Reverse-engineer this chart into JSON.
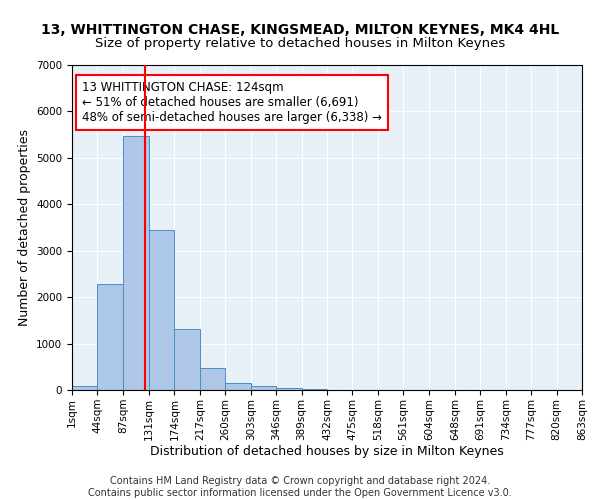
{
  "title": "13, WHITTINGTON CHASE, KINGSMEAD, MILTON KEYNES, MK4 4HL",
  "subtitle": "Size of property relative to detached houses in Milton Keynes",
  "xlabel": "Distribution of detached houses by size in Milton Keynes",
  "ylabel": "Number of detached properties",
  "footer_line1": "Contains HM Land Registry data © Crown copyright and database right 2024.",
  "footer_line2": "Contains public sector information licensed under the Open Government Licence v3.0.",
  "bin_edges": [
    1,
    44,
    87,
    131,
    174,
    217,
    260,
    303,
    346,
    389,
    432,
    475,
    518,
    561,
    604,
    648,
    691,
    734,
    777,
    820,
    863
  ],
  "bin_labels": [
    "1sqm",
    "44sqm",
    "87sqm",
    "131sqm",
    "174sqm",
    "217sqm",
    "260sqm",
    "303sqm",
    "346sqm",
    "389sqm",
    "432sqm",
    "475sqm",
    "518sqm",
    "561sqm",
    "604sqm",
    "648sqm",
    "691sqm",
    "734sqm",
    "777sqm",
    "820sqm",
    "863sqm"
  ],
  "bar_heights": [
    80,
    2280,
    5480,
    3450,
    1320,
    470,
    155,
    85,
    50,
    25,
    10,
    5,
    3,
    2,
    1,
    1,
    0,
    0,
    0,
    0
  ],
  "bar_color": "#aec6e8",
  "bar_edge_color": "#4a90c4",
  "vline_x": 124,
  "vline_color": "red",
  "annotation_text": "13 WHITTINGTON CHASE: 124sqm\n← 51% of detached houses are smaller (6,691)\n48% of semi-detached houses are larger (6,338) →",
  "ylim": [
    0,
    7000
  ],
  "background_color": "#e8f0f8",
  "grid_color": "#ffffff",
  "title_fontsize": 10,
  "subtitle_fontsize": 9.5,
  "label_fontsize": 9,
  "footer_fontsize": 7,
  "tick_fontsize": 7.5,
  "annot_fontsize": 8.5
}
